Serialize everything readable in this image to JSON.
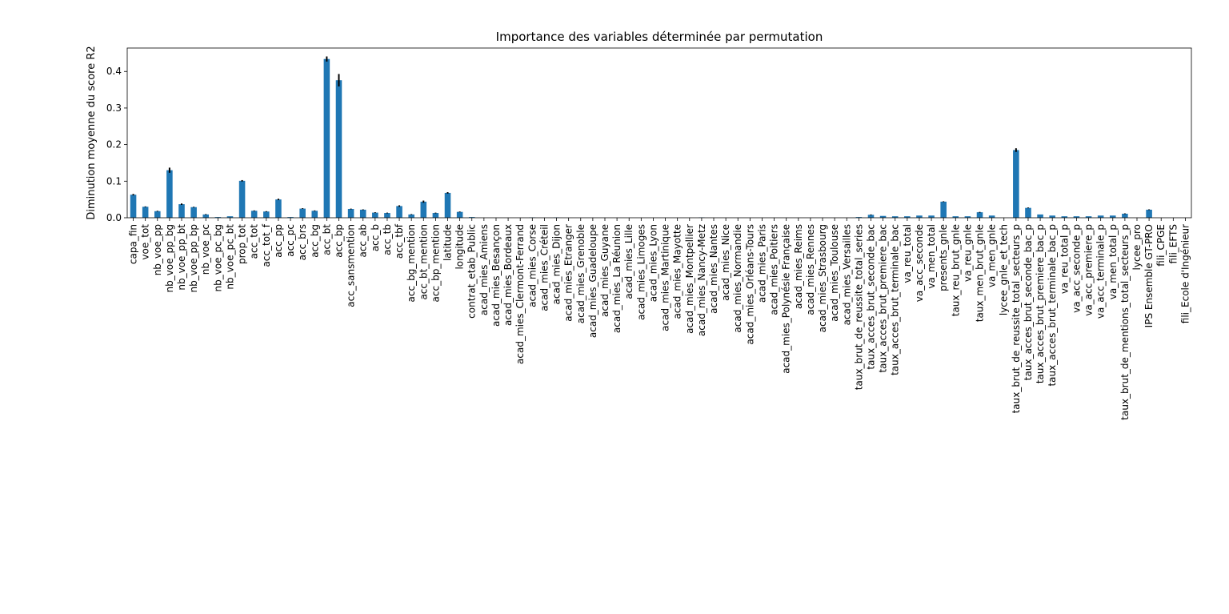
{
  "chart_data": {
    "type": "bar",
    "title": "Importance des variables déterminée par permutation",
    "xlabel": "",
    "ylabel": "Diminution moyenne du score R2",
    "ylim": [
      0,
      0.464
    ],
    "yticks": [
      0.0,
      0.1,
      0.2,
      0.3,
      0.4
    ],
    "ytick_labels": [
      "0.0",
      "0.1",
      "0.2",
      "0.3",
      "0.4"
    ],
    "grid": false,
    "legend": "none",
    "colors": {
      "bar": "#1f77b4",
      "error_bar": "#000000",
      "axis": "#000000"
    },
    "categories": [
      "capa_fin",
      "voe_tot",
      "nb_voe_pp",
      "nb_voe_pp_bg",
      "nb_voe_pp_bt",
      "nb_voe_pp_bp",
      "nb_voe_pc",
      "nb_voe_pc_bg",
      "nb_voe_pc_bt",
      "prop_tot",
      "acc_tot",
      "acc_tot_f",
      "acc_pp",
      "acc_pc",
      "acc_brs",
      "acc_bg",
      "acc_bt",
      "acc_bp",
      "acc_sansmention",
      "acc_ab",
      "acc_b",
      "acc_tb",
      "acc_tbf",
      "acc_bg_mention",
      "acc_bt_mention",
      "acc_bp_mention",
      "latitude",
      "longitude",
      "contrat_etab_Public",
      "acad_mies_Amiens",
      "acad_mies_Besançon",
      "acad_mies_Bordeaux",
      "acad_mies_Clermont-Ferrand",
      "acad_mies_Corse",
      "acad_mies_Créteil",
      "acad_mies_Dijon",
      "acad_mies_Etranger",
      "acad_mies_Grenoble",
      "acad_mies_Guadeloupe",
      "acad_mies_Guyane",
      "acad_mies_La Réunion",
      "acad_mies_Lille",
      "acad_mies_Limoges",
      "acad_mies_Lyon",
      "acad_mies_Martinique",
      "acad_mies_Mayotte",
      "acad_mies_Montpellier",
      "acad_mies_Nancy-Metz",
      "acad_mies_Nantes",
      "acad_mies_Nice",
      "acad_mies_Normandie",
      "acad_mies_Orléans-Tours",
      "acad_mies_Paris",
      "acad_mies_Poitiers",
      "acad_mies_Polynésie Française",
      "acad_mies_Reims",
      "acad_mies_Rennes",
      "acad_mies_Strasbourg",
      "acad_mies_Toulouse",
      "acad_mies_Versailles",
      "taux_brut_de_reussite_total_series",
      "taux_acces_brut_seconde_bac",
      "taux_acces_brut_premiere_bac",
      "taux_acces_brut_terminale_bac",
      "va_reu_total",
      "va_acc_seconde",
      "va_men_total",
      "presents_gnle",
      "taux_reu_brut_gnle",
      "va_reu_gnle",
      "taux_men_brut_gnle",
      "va_men_gnle",
      "lycee_gnle_et_tech",
      "taux_brut_de_reussite_total_secteurs_p",
      "taux_acces_brut_seconde_bac_p",
      "taux_acces_brut_premiere_bac_p",
      "taux_acces_brut_terminale_bac_p",
      "va_reu_total_p",
      "va_acc_seconde_p",
      "va_acc_premiere_p",
      "va_acc_terminale_p",
      "va_men_total_p",
      "taux_brut_de_mentions_total_secteurs_p",
      "lycee_pro",
      "IPS Ensemble GT-PRO",
      "fili_CPGE",
      "fili_EFTS",
      "fili_Ecole d'Ingénieur"
    ],
    "values": [
      0.063,
      0.03,
      0.018,
      0.13,
      0.037,
      0.029,
      0.009,
      0.002,
      0.004,
      0.101,
      0.019,
      0.017,
      0.05,
      0.002,
      0.025,
      0.019,
      0.434,
      0.376,
      0.024,
      0.022,
      0.014,
      0.013,
      0.032,
      0.009,
      0.044,
      0.013,
      0.068,
      0.016,
      0.002,
      0.0,
      0.0,
      0.0,
      0.0,
      0.001,
      0.0,
      0.001,
      0.0,
      0.0,
      0.0,
      0.0,
      0.0,
      0.0,
      0.0,
      0.0,
      0.0,
      0.0,
      0.0,
      0.001,
      0.0,
      0.0,
      0.0,
      0.0,
      0.0,
      0.0,
      0.0,
      0.0,
      0.0,
      0.0,
      0.0,
      0.0,
      0.002,
      0.008,
      0.005,
      0.004,
      0.004,
      0.006,
      0.006,
      0.044,
      0.004,
      0.004,
      0.015,
      0.006,
      0.0,
      0.185,
      0.027,
      0.009,
      0.006,
      0.004,
      0.004,
      0.004,
      0.006,
      0.006,
      0.011,
      0.0,
      0.022,
      0.0,
      0.0,
      0.0
    ],
    "errors": [
      0.002,
      0.001,
      0.001,
      0.007,
      0.002,
      0.001,
      0.001,
      0.0,
      0.0,
      0.002,
      0.001,
      0.001,
      0.002,
      0.0,
      0.001,
      0.001,
      0.007,
      0.017,
      0.001,
      0.001,
      0.001,
      0.001,
      0.002,
      0.001,
      0.003,
      0.001,
      0.002,
      0.001,
      0.0,
      0.0,
      0.0,
      0.0,
      0.0,
      0.0,
      0.0,
      0.0,
      0.0,
      0.0,
      0.0,
      0.0,
      0.0,
      0.0,
      0.0,
      0.0,
      0.0,
      0.0,
      0.0,
      0.0,
      0.0,
      0.0,
      0.0,
      0.0,
      0.0,
      0.0,
      0.0,
      0.0,
      0.0,
      0.0,
      0.0,
      0.0,
      0.0,
      0.001,
      0.0,
      0.0,
      0.0,
      0.0,
      0.0,
      0.001,
      0.0,
      0.0,
      0.001,
      0.0,
      0.0,
      0.005,
      0.001,
      0.0,
      0.0,
      0.0,
      0.0,
      0.0,
      0.0,
      0.0,
      0.001,
      0.0,
      0.001,
      0.0,
      0.0,
      0.0
    ]
  }
}
